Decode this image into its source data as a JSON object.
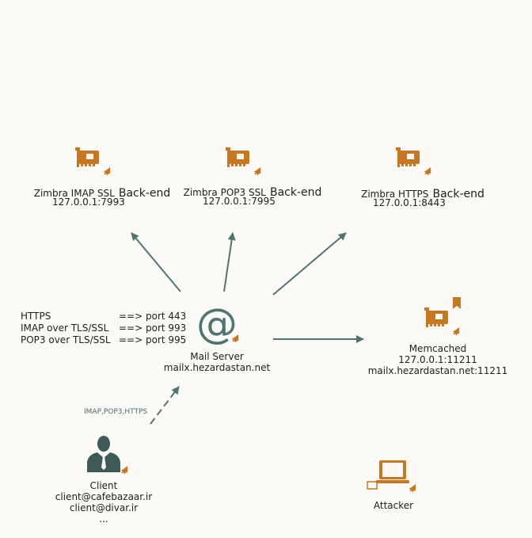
{
  "backends": [
    {
      "name": "Zimbra IMAP SSL",
      "suffix": "Back-end",
      "address": "127.0.0.1:7993"
    },
    {
      "name": "Zimbra POP3 SSL",
      "suffix": "Back-end",
      "address": "127.0.0.1:7995"
    },
    {
      "name": "Zimbra HTTPS",
      "suffix": "Back-end",
      "address": "127.0.0.1:8443"
    }
  ],
  "mail_server": {
    "name": "Mail Server",
    "host": "mailx.hezardastan.net",
    "symbol": "@"
  },
  "memcached": {
    "name": "Memcached",
    "address": "127.0.0.1:11211",
    "host_port": "mailx.hezardastan.net:11211"
  },
  "ports": [
    {
      "protocol": "HTTPS",
      "arrow": "==> port 443"
    },
    {
      "protocol": "IMAP over TLS/SSL",
      "arrow": "==> port 993"
    },
    {
      "protocol": "POP3 over TLS/SSL",
      "arrow": "==> port 995"
    }
  ],
  "client_edge_label": "IMAP,POP3,HTTPS",
  "client": {
    "name": "Client",
    "emails": [
      "client@cafebazaar.ir",
      "client@divar.ir"
    ],
    "more": "..."
  },
  "attacker": {
    "name": "Attacker"
  },
  "colors": {
    "icon": "#c8761f",
    "arrow": "#4f7471",
    "person": "#3d5a57"
  },
  "icons": {
    "backend": "network-card-icon",
    "memcached": "network-card-icon",
    "bookmark": "bookmark-icon",
    "pin": "pushpin-icon",
    "server": "at-sign-icon",
    "client": "user-icon",
    "attacker": "laptop-icon"
  }
}
